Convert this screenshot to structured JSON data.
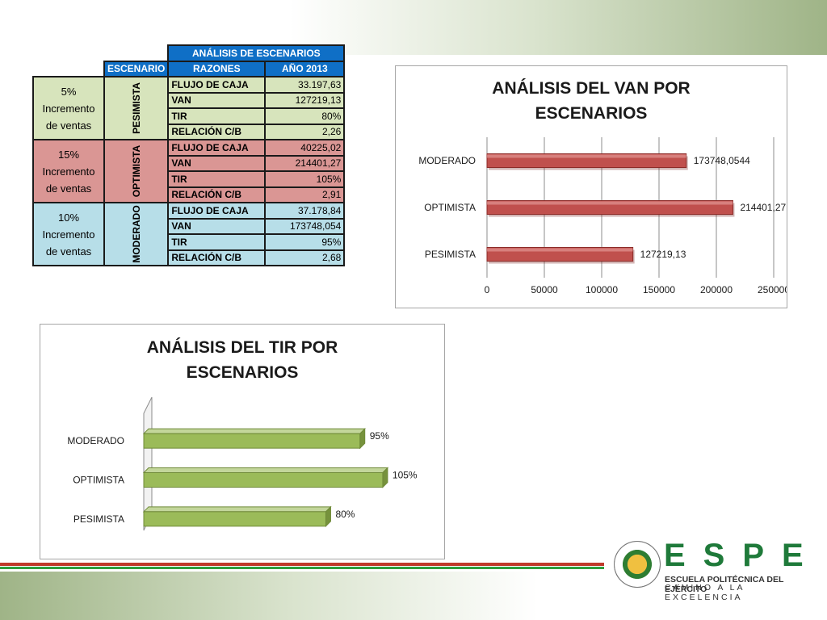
{
  "table": {
    "title": "ANÁLISIS DE ESCENARIOS",
    "headers": [
      "ESCENARIO",
      "RAZONES",
      "AÑO 2013"
    ],
    "groups": [
      {
        "scenario_text": "5% Incremento de ventas",
        "label": "PESIMISTA",
        "color": "#d7e4bc",
        "rows": [
          [
            "FLUJO DE CAJA",
            "33.197,63"
          ],
          [
            "VAN",
            "127219,13"
          ],
          [
            "TIR",
            "80%"
          ],
          [
            "RELACIÓN C/B",
            "2,26"
          ]
        ]
      },
      {
        "scenario_text": "15% Incremento de ventas",
        "label": "OPTIMISTA",
        "color": "#da9694",
        "rows": [
          [
            "FLUJO DE CAJA",
            "40225,02"
          ],
          [
            "VAN",
            "214401,27"
          ],
          [
            "TIR",
            "105%"
          ],
          [
            "RELACIÓN C/B",
            "2,91"
          ]
        ]
      },
      {
        "scenario_text": "10% Incremento de ventas",
        "label": "MODERADO",
        "color": "#b7dee8",
        "rows": [
          [
            "FLUJO DE CAJA",
            "37.178,84"
          ],
          [
            "VAN",
            "173748,054"
          ],
          [
            "TIR",
            "95%"
          ],
          [
            "RELACIÓN C/B",
            "2,68"
          ]
        ]
      }
    ]
  },
  "chart_data": [
    {
      "type": "bar",
      "orientation": "horizontal",
      "title": "ANÁLISIS DEL VAN POR ESCENARIOS",
      "categories": [
        "MODERADO",
        "OPTIMISTA",
        "PESIMISTA"
      ],
      "values": [
        173748.0544,
        214401.27,
        127219.13
      ],
      "data_labels": [
        "173748,0544",
        "214401,27",
        "127219,13"
      ],
      "xlim": [
        0,
        250000
      ],
      "x_ticks": [
        "0",
        "50000",
        "100000",
        "150000",
        "200000",
        "250000"
      ],
      "grid": true,
      "legend": "none",
      "bar_color": "#c0504d"
    },
    {
      "type": "bar",
      "orientation": "horizontal",
      "title": "ANÁLISIS DEL TIR POR ESCENARIOS",
      "categories": [
        "MODERADO",
        "OPTIMISTA",
        "PESIMISTA"
      ],
      "values": [
        95,
        105,
        80
      ],
      "data_labels": [
        "95%",
        "105%",
        "80%"
      ],
      "xlim": [
        0,
        110
      ],
      "grid": false,
      "legend": "none",
      "bar_color": "#9bbb59"
    }
  ],
  "logo": {
    "brand": "ESPE",
    "line1": "ESCUELA POLITÉCNICA DEL EJÉRCITO",
    "line2": "CAMINO A LA EXCELENCIA"
  }
}
